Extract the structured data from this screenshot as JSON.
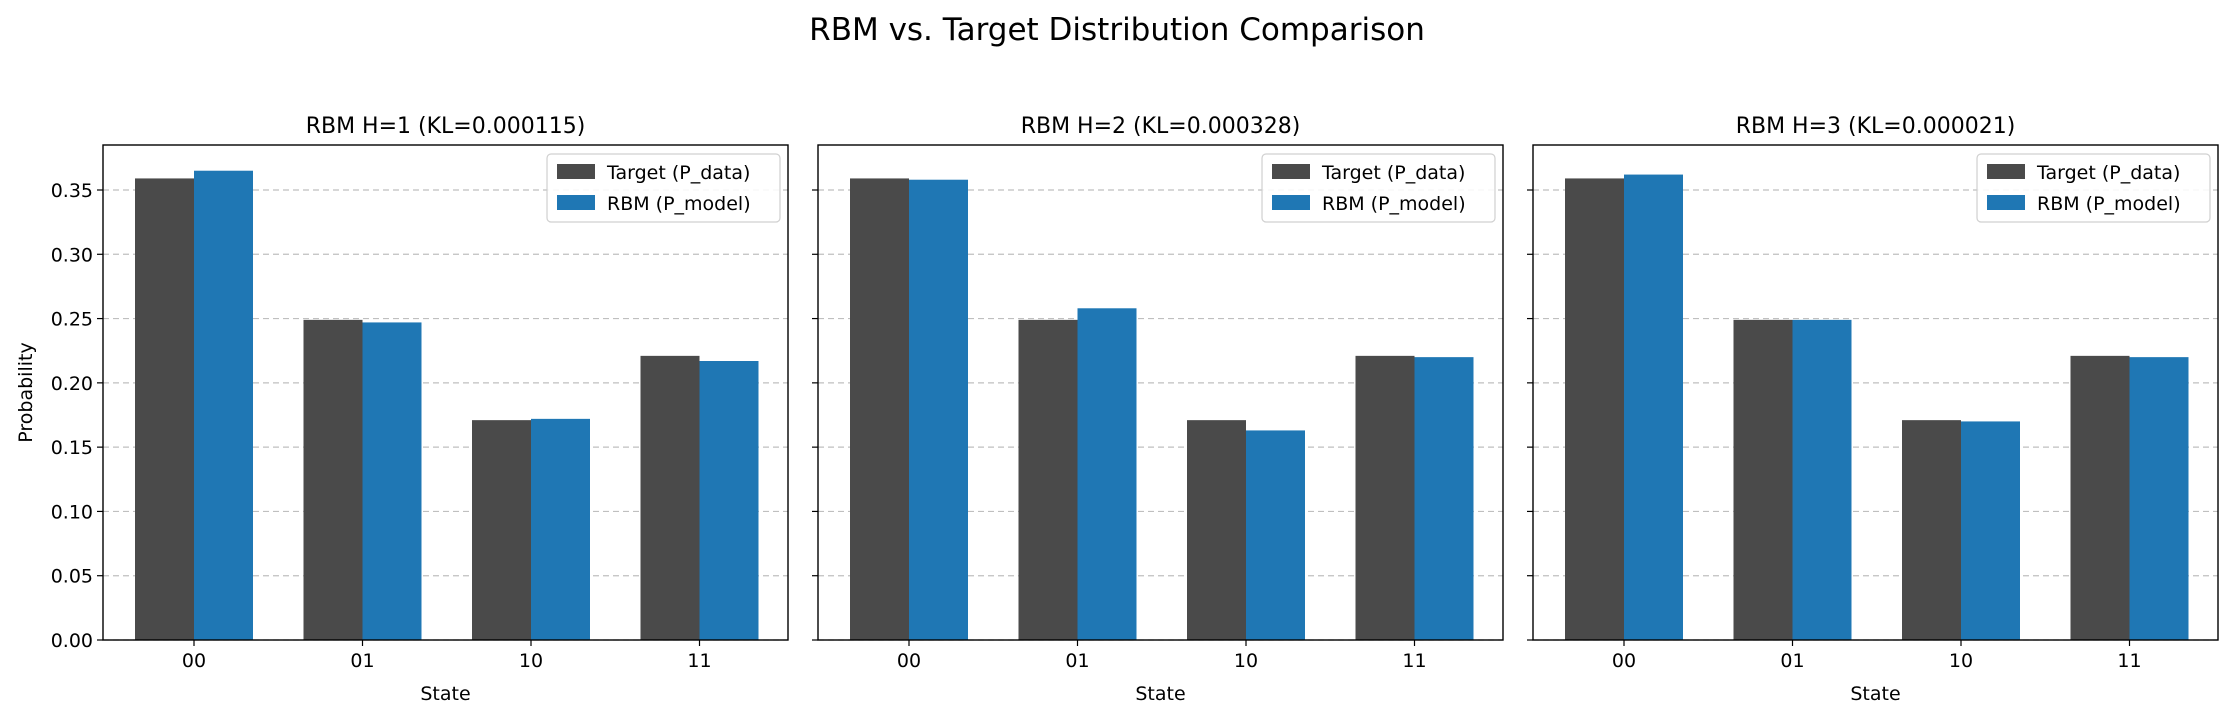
{
  "suptitle": "RBM vs. Target Distribution Comparison",
  "colors": {
    "target": "#4a4a4a",
    "model": "#1f77b4",
    "grid": "#b0b0b0",
    "axes": "#000000"
  },
  "chart_data": [
    {
      "type": "bar",
      "title": "RBM H=1 (KL=0.000115)",
      "xlabel": "State",
      "ylabel": "Probability",
      "categories": [
        "00",
        "01",
        "10",
        "11"
      ],
      "series": [
        {
          "name": "Target (P_data)",
          "values": [
            0.359,
            0.249,
            0.171,
            0.221
          ]
        },
        {
          "name": "RBM (P_model)",
          "values": [
            0.365,
            0.247,
            0.172,
            0.217
          ]
        }
      ],
      "ylim": [
        0,
        0.385
      ],
      "yticks": [
        "0.00",
        "0.05",
        "0.10",
        "0.15",
        "0.20",
        "0.25",
        "0.30",
        "0.35"
      ],
      "grid": "y-dashed",
      "legend": "top-right"
    },
    {
      "type": "bar",
      "title": "RBM H=2 (KL=0.000328)",
      "xlabel": "State",
      "ylabel": "",
      "categories": [
        "00",
        "01",
        "10",
        "11"
      ],
      "series": [
        {
          "name": "Target (P_data)",
          "values": [
            0.359,
            0.249,
            0.171,
            0.221
          ]
        },
        {
          "name": "RBM (P_model)",
          "values": [
            0.358,
            0.258,
            0.163,
            0.22
          ]
        }
      ],
      "ylim": [
        0,
        0.385
      ],
      "yticks": [
        "0.00",
        "0.05",
        "0.10",
        "0.15",
        "0.20",
        "0.25",
        "0.30",
        "0.35"
      ],
      "grid": "y-dashed",
      "legend": "top-right"
    },
    {
      "type": "bar",
      "title": "RBM H=3 (KL=0.000021)",
      "xlabel": "State",
      "ylabel": "",
      "categories": [
        "00",
        "01",
        "10",
        "11"
      ],
      "series": [
        {
          "name": "Target (P_data)",
          "values": [
            0.359,
            0.249,
            0.171,
            0.221
          ]
        },
        {
          "name": "RBM (P_model)",
          "values": [
            0.362,
            0.249,
            0.17,
            0.22
          ]
        }
      ],
      "ylim": [
        0,
        0.385
      ],
      "yticks": [
        "0.00",
        "0.05",
        "0.10",
        "0.15",
        "0.20",
        "0.25",
        "0.30",
        "0.35"
      ],
      "grid": "y-dashed",
      "legend": "top-right"
    }
  ]
}
